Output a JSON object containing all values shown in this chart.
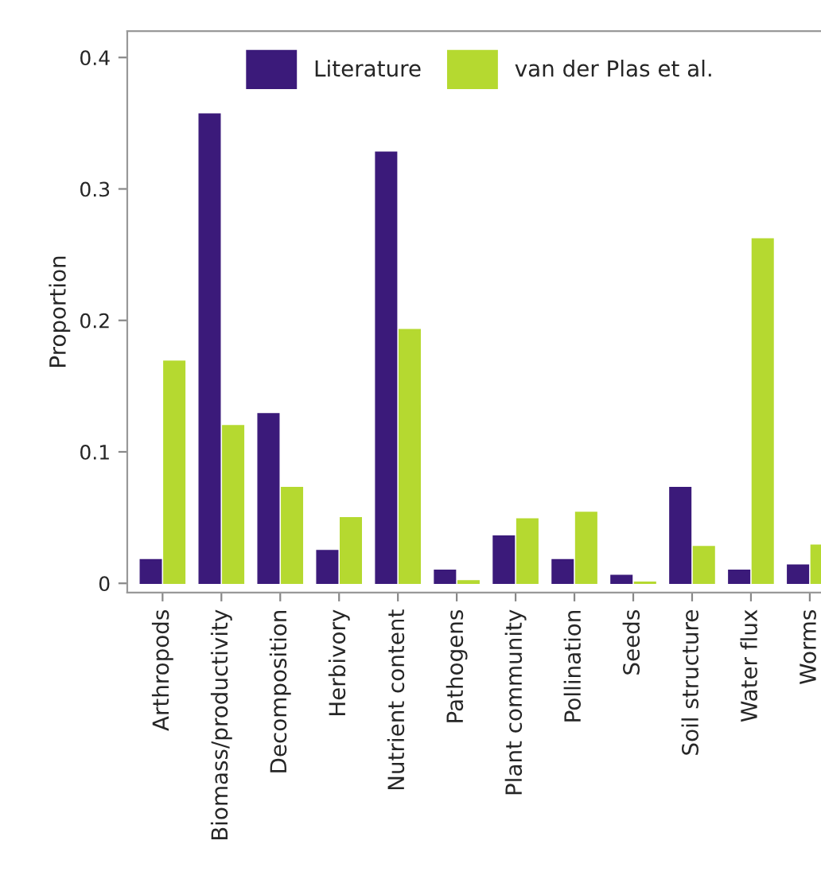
{
  "chart_data": {
    "type": "bar",
    "ylabel": "Proportion",
    "categories": [
      "Arthropods",
      "Biomass/productivity",
      "Decomposition",
      "Herbivory",
      "Nutrient content",
      "Pathogens",
      "Plant community",
      "Pollination",
      "Seeds",
      "Soil structure",
      "Water flux",
      "Worms"
    ],
    "series": [
      {
        "name": "Literature",
        "color": "#3b1a7a",
        "values": [
          0.018,
          0.357,
          0.129,
          0.025,
          0.328,
          0.01,
          0.036,
          0.018,
          0.006,
          0.073,
          0.01,
          0.014
        ]
      },
      {
        "name": "van der Plas et al.",
        "color": "#b5d930",
        "values": [
          0.169,
          0.12,
          0.073,
          0.05,
          0.193,
          0.002,
          0.049,
          0.054,
          0.001,
          0.028,
          0.262,
          0.029
        ]
      }
    ],
    "ylim": [
      -0.007,
      0.42
    ],
    "yticks": [
      0,
      0.1,
      0.2,
      0.3,
      0.4
    ],
    "grid": false,
    "legend": "top"
  }
}
